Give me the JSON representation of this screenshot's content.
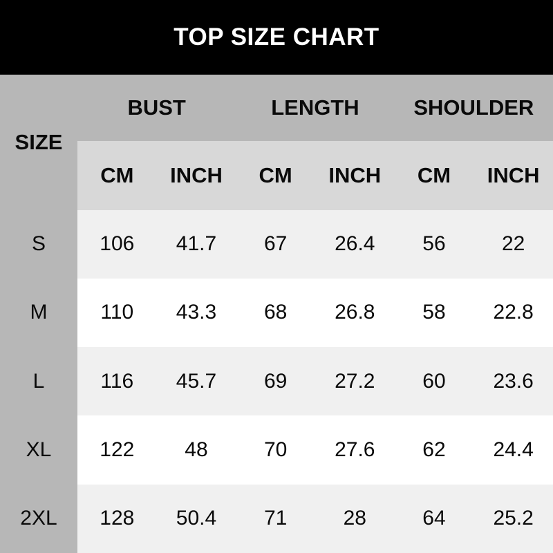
{
  "title": "TOP SIZE CHART",
  "colors": {
    "title_bar_bg": "#000000",
    "title_text": "#ffffff",
    "header_gray": "#b7b7b7",
    "subheader_gray": "#d8d8d8",
    "row_stripe_gray": "#f0f0f0",
    "row_stripe_white": "#ffffff",
    "table_text": "#0a0a0a"
  },
  "chart_data": {
    "type": "table",
    "title": "TOP SIZE CHART",
    "row_header": "SIZE",
    "column_groups": [
      "BUST",
      "LENGTH",
      "SHOULDER"
    ],
    "sub_columns": [
      "CM",
      "INCH",
      "CM",
      "INCH",
      "CM",
      "INCH"
    ],
    "rows": [
      {
        "size": "S",
        "values": [
          "106",
          "41.7",
          "67",
          "26.4",
          "56",
          "22"
        ]
      },
      {
        "size": "M",
        "values": [
          "110",
          "43.3",
          "68",
          "26.8",
          "58",
          "22.8"
        ]
      },
      {
        "size": "L",
        "values": [
          "116",
          "45.7",
          "69",
          "27.2",
          "60",
          "23.6"
        ]
      },
      {
        "size": "XL",
        "values": [
          "122",
          "48",
          "70",
          "27.6",
          "62",
          "24.4"
        ]
      },
      {
        "size": "2XL",
        "values": [
          "128",
          "50.4",
          "71",
          "28",
          "64",
          "25.2"
        ]
      }
    ]
  }
}
